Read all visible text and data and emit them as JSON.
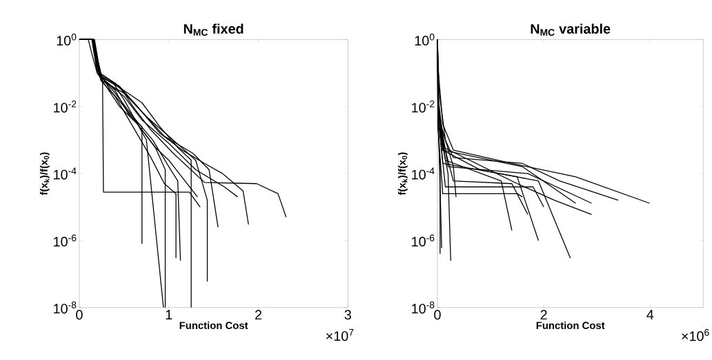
{
  "chart_data": [
    {
      "type": "line",
      "title": "N$_{MC}$ fixed",
      "xlabel": "Function Cost",
      "ylabel": "f(x$_{k}$)/f(x$_{0}$)",
      "log": "y",
      "marker": "none",
      "xlim": [
        0,
        3
      ],
      "xticks": [
        0,
        1,
        2,
        3
      ],
      "ylim": [
        1e-08,
        1
      ],
      "yticks": [
        {
          "value": 1e-08,
          "label": "10$^{-8}$"
        },
        {
          "value": 1e-06,
          "label": "10$^{-6}$"
        },
        {
          "value": 0.0001,
          "label": "10$^{-4}$"
        },
        {
          "value": 0.01,
          "label": "10$^{-2}$"
        },
        {
          "value": 1,
          "label": "10$^{0}$"
        }
      ],
      "annotations": [
        "×10$^{7}$"
      ],
      "series": [
        {
          "color": "#000000",
          "x": [
            0,
            0.16,
            0.23,
            0.45,
            0.6,
            0.8,
            1.05,
            1.4,
            1.98,
            2.22,
            2.31
          ],
          "values": [
            1,
            1,
            0.1,
            0.04,
            0.01,
            0.002,
            0.0004,
            5.4e-05,
            5e-05,
            2.5e-05,
            5e-06
          ]
        },
        {
          "color": "#000000",
          "x": [
            0,
            0.15,
            0.25,
            0.38,
            0.5,
            0.65,
            0.75,
            0.94
          ],
          "values": [
            1,
            1,
            0.08,
            0.05,
            0.016,
            0.003,
            0.001,
            1e-08
          ]
        },
        {
          "color": "#000000",
          "x": [
            0,
            0.15,
            0.26,
            0.27,
            1.23,
            1.35
          ],
          "values": [
            1,
            1,
            0.06,
            2.8e-05,
            2.8e-05,
            1e-05
          ]
        },
        {
          "color": "#000000",
          "x": [
            0,
            0.1,
            0.15,
            0.2,
            0.4,
            0.55,
            0.7,
            0.7
          ],
          "values": [
            1,
            1,
            0.3,
            0.1,
            0.03,
            0.006,
            0.0025,
            8e-07
          ]
        },
        {
          "color": "#000000",
          "x": [
            0,
            0.17,
            0.24,
            0.5,
            0.7,
            0.9,
            1.1,
            1.25,
            1.25
          ],
          "values": [
            1,
            1,
            0.08,
            0.03,
            0.013,
            0.0025,
            0.0006,
            0.00025,
            1e-08
          ]
        },
        {
          "color": "#000000",
          "x": [
            0,
            0.16,
            0.22,
            0.4,
            0.65,
            0.9,
            1.15,
            1.4,
            1.6,
            1.83,
            1.89
          ],
          "values": [
            1,
            1,
            0.1,
            0.05,
            0.01,
            0.0016,
            0.0005,
            0.0002,
            0.0001,
            3e-05,
            3e-06
          ]
        },
        {
          "color": "#000000",
          "x": [
            0,
            0.15,
            0.2,
            0.35,
            0.5,
            0.7,
            0.85,
            0.96,
            0.96
          ],
          "values": [
            1,
            1,
            0.13,
            0.03,
            0.01,
            0.002,
            0.0006,
            0.00013,
            1e-08
          ]
        },
        {
          "color": "#000000",
          "x": [
            0,
            0.16,
            0.23,
            0.45,
            0.68,
            0.95,
            1.27,
            1.45,
            1.55
          ],
          "values": [
            1,
            1,
            0.08,
            0.04,
            0.008,
            0.0013,
            0.0004,
            0.00013,
            2.5e-06
          ]
        },
        {
          "color": "#000000",
          "x": [
            0,
            0.15,
            0.21,
            0.4,
            0.6,
            0.82,
            1.0,
            1.1,
            1.13
          ],
          "values": [
            1,
            1,
            0.1,
            0.025,
            0.005,
            0.001,
            0.00016,
            6e-05,
            2.5e-07
          ]
        },
        {
          "color": "#000000",
          "x": [
            0,
            0.16,
            0.25,
            0.5,
            0.75,
            1.05,
            1.3,
            1.43,
            1.43
          ],
          "values": [
            1,
            1,
            0.06,
            0.025,
            0.005,
            0.001,
            0.00025,
            1.6e-05,
            6e-08
          ]
        },
        {
          "color": "#000000",
          "x": [
            0,
            0.14,
            0.2,
            0.3,
            0.45,
            0.65,
            0.85,
            1.0,
            1.32
          ],
          "values": [
            1,
            1,
            0.1,
            0.04,
            0.01,
            0.003,
            0.0006,
            0.00025,
            2e-05
          ]
        },
        {
          "color": "#000000",
          "x": [
            0,
            0.15,
            0.23,
            0.5,
            0.7,
            1.0,
            1.3,
            1.62,
            1.77
          ],
          "values": [
            1,
            1,
            0.08,
            0.02,
            0.004,
            0.0008,
            0.00013,
            4e-05,
            2e-05
          ]
        },
        {
          "color": "#000000",
          "x": [
            0,
            0.16,
            0.24,
            0.4,
            0.6,
            0.8,
            0.95,
            1.08,
            1.08
          ],
          "values": [
            1,
            1,
            0.06,
            0.02,
            0.0025,
            0.0003,
            5e-05,
            2.5e-05,
            3e-07
          ]
        }
      ]
    },
    {
      "type": "line",
      "title": "N$_{MC}$ variable",
      "xlabel": "Function Cost",
      "ylabel": "f(x$_{k}$)/f(x$_{0}$)",
      "log": "y",
      "marker": "none",
      "xlim": [
        0,
        5
      ],
      "xticks": [
        0,
        2,
        4
      ],
      "ylim": [
        1e-08,
        1
      ],
      "yticks": [
        {
          "value": 1e-08,
          "label": "10$^{-8}$"
        },
        {
          "value": 1e-06,
          "label": "10$^{-6}$"
        },
        {
          "value": 0.0001,
          "label": "10$^{-4}$"
        },
        {
          "value": 0.01,
          "label": "10$^{-2}$"
        },
        {
          "value": 1,
          "label": "10$^{0}$"
        }
      ],
      "annotations": [
        "×10$^{6}$"
      ],
      "series": [
        {
          "color": "#000000",
          "x": [
            0,
            0.02,
            0.1,
            0.3,
            1.4,
            2.6,
            3.99
          ],
          "values": [
            1,
            0.1,
            0.003,
            0.0005,
            0.0002,
            8e-05,
            1.3e-05
          ]
        },
        {
          "color": "#000000",
          "x": [
            0,
            0.03,
            0.15,
            0.3,
            1.6,
            2.3,
            3.4
          ],
          "values": [
            1,
            0.03,
            0.001,
            0.0003,
            0.0002,
            6e-05,
            1.6e-05
          ]
        },
        {
          "color": "#000000",
          "x": [
            0,
            0.02,
            0.1,
            0.8,
            1.9,
            2.5
          ],
          "values": [
            1,
            0.01,
            0.0005,
            0.00013,
            6e-05,
            3e-07
          ]
        },
        {
          "color": "#000000",
          "x": [
            0,
            0.02,
            0.12,
            1.5,
            2.2,
            2.9
          ],
          "values": [
            1,
            0.016,
            0.0006,
            5e-05,
            1.6e-05,
            6e-06
          ]
        },
        {
          "color": "#000000",
          "x": [
            0,
            0.03,
            0.15,
            1.2,
            1.4
          ],
          "values": [
            1,
            0.006,
            0.00025,
            6e-05,
            2e-06
          ]
        },
        {
          "color": "#000000",
          "x": [
            0,
            0.01,
            0.05,
            0.05
          ],
          "values": [
            1,
            0.003,
            0.00016,
            4e-07
          ]
        },
        {
          "color": "#000000",
          "x": [
            0,
            0.02,
            0.2,
            0.25
          ],
          "values": [
            1,
            0.003,
            0.0001,
            2.5e-07
          ]
        },
        {
          "color": "#000000",
          "x": [
            0,
            0.02,
            0.3,
            0.35
          ],
          "values": [
            1,
            0.005,
            0.00016,
            2e-05
          ]
        },
        {
          "color": "#000000",
          "x": [
            0,
            0.02,
            0.1,
            1.5,
            1.9
          ],
          "values": [
            1,
            0.005,
            0.0002,
            8e-05,
            1e-06
          ]
        },
        {
          "color": "#000000",
          "x": [
            0,
            0.02,
            0.2,
            1.7,
            2.9
          ],
          "values": [
            1,
            0.01,
            0.00016,
            0.0001,
            1.3e-05
          ]
        },
        {
          "color": "#000000",
          "x": [
            0,
            0.02,
            0.15,
            1.8,
            2.0
          ],
          "values": [
            1,
            0.004,
            4e-05,
            4e-05,
            1e-05
          ]
        },
        {
          "color": "#000000",
          "x": [
            0,
            0.02,
            0.1,
            1.6,
            2.6
          ],
          "values": [
            1,
            0.01,
            0.0005,
            0.00016,
            1.3e-05
          ]
        },
        {
          "color": "#000000",
          "x": [
            0,
            0.01,
            0.1,
            1.5,
            1.6
          ],
          "values": [
            1,
            0.0025,
            2.5e-05,
            2.5e-05,
            2e-05
          ]
        },
        {
          "color": "#000000",
          "x": [
            0,
            0.01,
            0.08
          ],
          "values": [
            1,
            0.01,
            6e-07
          ]
        },
        {
          "color": "#000000",
          "x": [
            0,
            0.02,
            0.3,
            1.4,
            1.7
          ],
          "values": [
            1,
            0.003,
            6e-05,
            5e-05,
            6e-06
          ]
        }
      ]
    }
  ]
}
